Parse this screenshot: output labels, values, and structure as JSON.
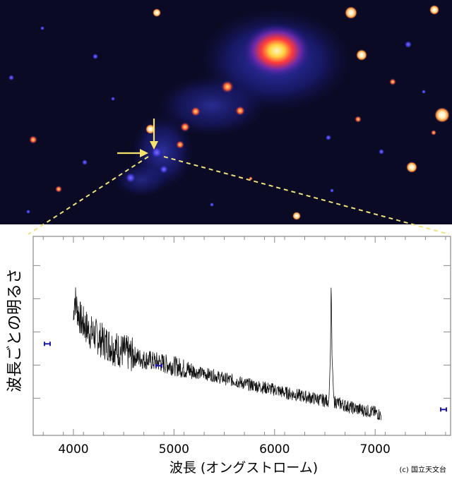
{
  "colors": {
    "image_background": "#0a0a24",
    "arrow": "#f5e26b",
    "zoom_lines": "#f0e27a",
    "spectrum_line": "#111111",
    "error_bars": "#1a1aa8",
    "axes": "#888888"
  },
  "image": {
    "arrows": [
      "down-arrow",
      "right-arrow"
    ]
  },
  "chart_data": {
    "type": "line",
    "title": "",
    "xlabel": "波長 (オングストローム)",
    "ylabel": "波長ごとの明るさ",
    "xlim": [
      3600,
      7750
    ],
    "ylim": [
      0,
      100
    ],
    "xticks": [
      "4000",
      "5000",
      "6000",
      "7000"
    ],
    "y_tick_count": 5,
    "grid": false,
    "series": [
      {
        "x": [
          4000,
          4010,
          4040,
          4080,
          4120,
          4160,
          4200,
          4250,
          4300,
          4350,
          4400,
          4450,
          4500,
          4550,
          4600,
          4650,
          4700,
          4750,
          4800,
          4850,
          4900,
          4950,
          5000,
          5100,
          5200,
          5300,
          5400,
          5500,
          5600,
          5700,
          5800,
          5900,
          6000,
          6100,
          6200,
          6300,
          6400,
          6500,
          6540,
          6555,
          6563,
          6571,
          6590,
          6650,
          6700,
          6800,
          6900,
          7000,
          7060
        ],
        "y": [
          58,
          70,
          63,
          57,
          55,
          52,
          51,
          49,
          47,
          46,
          44,
          43,
          42,
          41,
          40,
          39,
          38,
          38,
          37,
          37,
          36,
          35.5,
          35,
          33.5,
          32,
          31,
          30,
          28.5,
          27.5,
          26,
          25,
          24,
          23,
          21.5,
          20.5,
          19.5,
          18.5,
          17.5,
          17.5,
          40,
          79,
          40,
          17,
          16,
          15,
          13.5,
          12.5,
          11.5,
          10
        ]
      }
    ],
    "error_bars": [
      {
        "x": 3740,
        "y": 46
      },
      {
        "x": 4850,
        "y": 35
      },
      {
        "x": 7680,
        "y": 13
      }
    ]
  },
  "copyright": "(c) 国立天文台"
}
